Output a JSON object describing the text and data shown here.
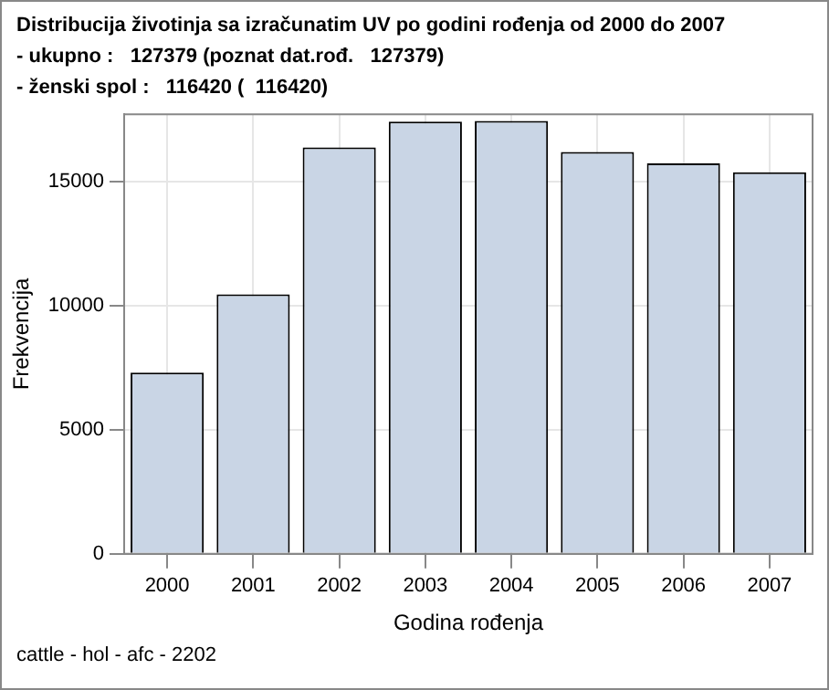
{
  "chart_data": {
    "type": "bar",
    "title": "Distribucija životinja sa izračunatim UV po godini rođenja od 2000 do 2007",
    "subtitle": "- ukupno :   127379 (poznat dat.rođ.   127379)\n- ženski spol :   116420 (  116420)",
    "xlabel": "Godina rođenja",
    "ylabel": "Frekvencija",
    "categories": [
      "2000",
      "2001",
      "2002",
      "2003",
      "2004",
      "2005",
      "2006",
      "2007"
    ],
    "values": [
      7300,
      10450,
      16370,
      17400,
      17430,
      16180,
      15720,
      15360
    ],
    "color": "#c9d5e5",
    "ylim": [
      0,
      17700
    ],
    "yticks": [
      0,
      5000,
      10000,
      15000
    ],
    "grid": true,
    "legend": false,
    "annotations": [
      "cattle - hol - afc - 2202"
    ]
  }
}
